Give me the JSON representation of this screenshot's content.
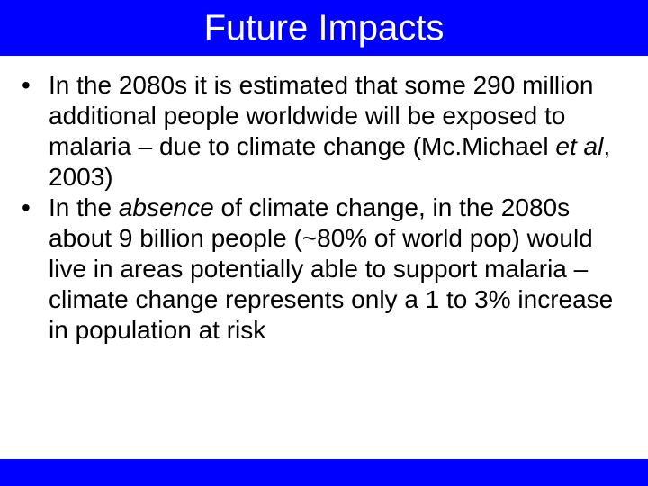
{
  "slide": {
    "title": "Future Impacts",
    "colors": {
      "bar": "#0000ff",
      "title_text": "#ffffff",
      "body_text": "#000000"
    },
    "bullet_marker": "•",
    "bullets": [
      {
        "segments": [
          {
            "text": "In the 2080s it is estimated that some 290 million additional people worldwide will be exposed to malaria – due to climate change (Mc.Michael ",
            "italic": false
          },
          {
            "text": "et al",
            "italic": true
          },
          {
            "text": ", 2003)",
            "italic": false
          }
        ]
      },
      {
        "segments": [
          {
            "text": "In the ",
            "italic": false
          },
          {
            "text": "absence",
            "italic": true
          },
          {
            "text": " of climate change, in the 2080s about 9 billion people (~80% of world pop) would live in areas potentially able to support malaria – climate change represents only a 1 to 3% increase in population at risk",
            "italic": false
          }
        ]
      }
    ]
  }
}
